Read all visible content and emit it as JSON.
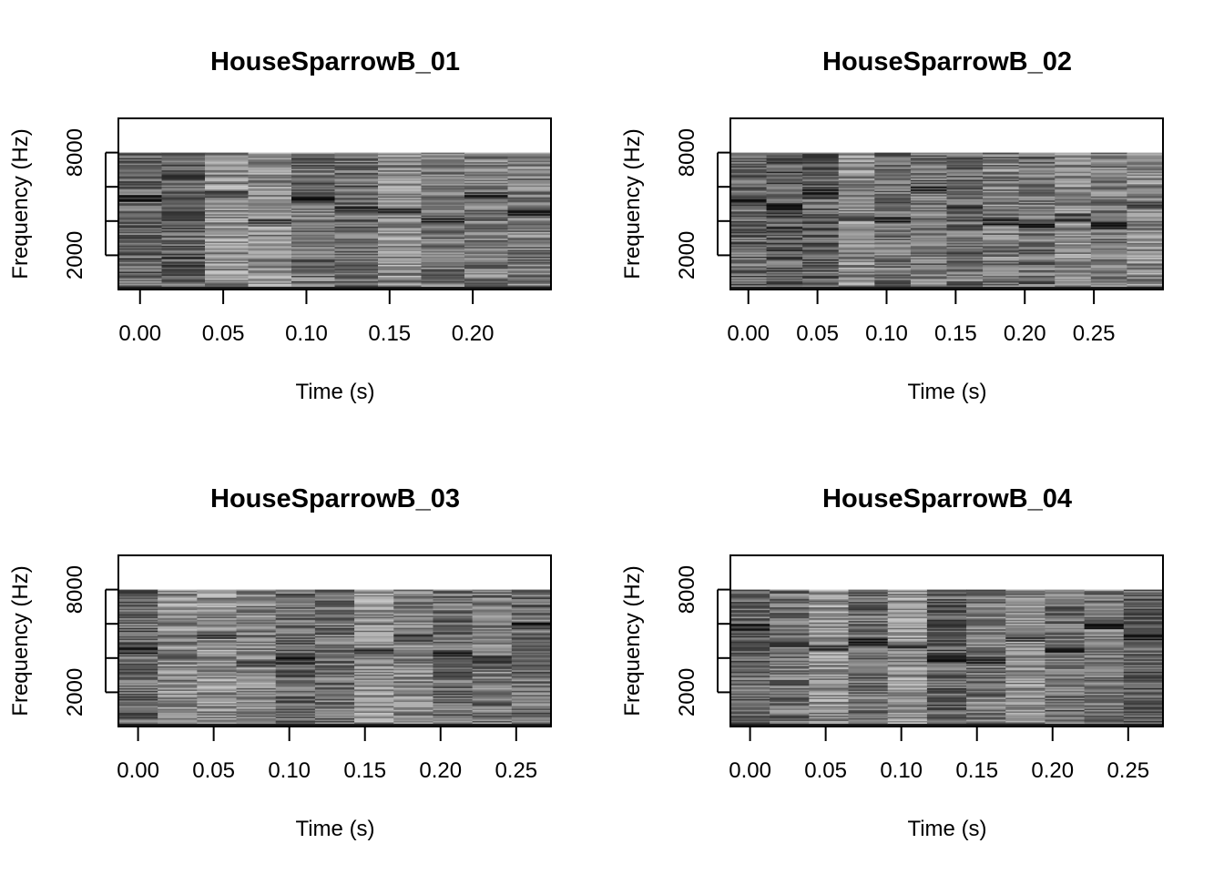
{
  "chart_data": [
    {
      "type": "heatmap",
      "title": "HouseSparrowB_01",
      "xlabel": "Time (s)",
      "ylabel": "Frequency (Hz)",
      "x_ticks": [
        "0.00",
        "0.05",
        "0.10",
        "0.15",
        "0.20"
      ],
      "x_tick_values": [
        0,
        0.05,
        0.1,
        0.15,
        0.2
      ],
      "y_tick_labels": [
        "2000",
        "8000"
      ],
      "y_tick_values": [
        2000,
        4000,
        6000,
        8000
      ],
      "xlim": [
        -0.013,
        0.247
      ],
      "ylim": [
        0,
        10000
      ],
      "data_range": {
        "t": [
          -0.013,
          0.247
        ],
        "f": [
          0,
          8000
        ]
      },
      "n_frames": 10,
      "seed": 11
    },
    {
      "type": "heatmap",
      "title": "HouseSparrowB_02",
      "xlabel": "Time (s)",
      "ylabel": "Frequency (Hz)",
      "x_ticks": [
        "0.00",
        "0.05",
        "0.10",
        "0.15",
        "0.20",
        "0.25"
      ],
      "x_tick_values": [
        0,
        0.05,
        0.1,
        0.15,
        0.2,
        0.25
      ],
      "y_tick_labels": [
        "2000",
        "8000"
      ],
      "y_tick_values": [
        2000,
        4000,
        6000,
        8000
      ],
      "xlim": [
        -0.013,
        0.3
      ],
      "ylim": [
        0,
        10000
      ],
      "data_range": {
        "t": [
          -0.013,
          0.3
        ],
        "f": [
          0,
          8000
        ]
      },
      "n_frames": 12,
      "seed": 23
    },
    {
      "type": "heatmap",
      "title": "HouseSparrowB_03",
      "xlabel": "Time (s)",
      "ylabel": "Frequency (Hz)",
      "x_ticks": [
        "0.00",
        "0.05",
        "0.10",
        "0.15",
        "0.20",
        "0.25"
      ],
      "x_tick_values": [
        0,
        0.05,
        0.1,
        0.15,
        0.2,
        0.25
      ],
      "y_tick_labels": [
        "2000",
        "8000"
      ],
      "y_tick_values": [
        2000,
        4000,
        6000,
        8000
      ],
      "xlim": [
        -0.013,
        0.273
      ],
      "ylim": [
        0,
        10000
      ],
      "data_range": {
        "t": [
          -0.013,
          0.273
        ],
        "f": [
          0,
          8000
        ]
      },
      "n_frames": 11,
      "seed": 37
    },
    {
      "type": "heatmap",
      "title": "HouseSparrowB_04",
      "xlabel": "Time (s)",
      "ylabel": "Frequency (Hz)",
      "x_ticks": [
        "0.00",
        "0.05",
        "0.10",
        "0.15",
        "0.20",
        "0.25"
      ],
      "x_tick_values": [
        0,
        0.05,
        0.1,
        0.15,
        0.2,
        0.25
      ],
      "y_tick_labels": [
        "2000",
        "8000"
      ],
      "y_tick_values": [
        2000,
        4000,
        6000,
        8000
      ],
      "xlim": [
        -0.013,
        0.273
      ],
      "ylim": [
        0,
        10000
      ],
      "data_range": {
        "t": [
          -0.013,
          0.273
        ],
        "f": [
          0,
          8000
        ]
      },
      "n_frames": 11,
      "seed": 53
    }
  ]
}
